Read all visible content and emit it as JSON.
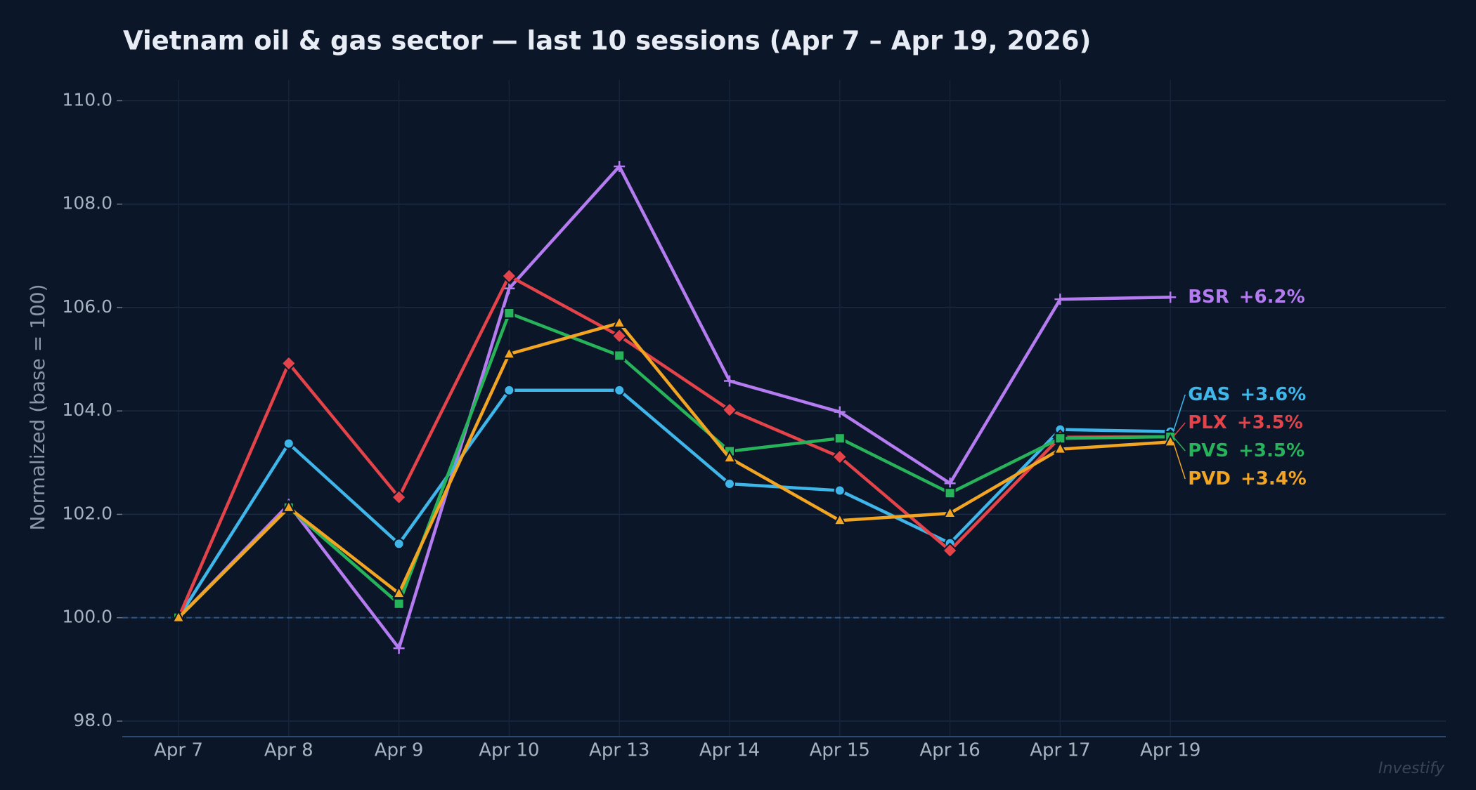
{
  "chart_data": {
    "type": "line",
    "title": "Vietnam oil & gas sector — last 10 sessions (Apr 7 – Apr 19, 2026)",
    "y_label": "Normalized (base = 100)",
    "watermark": "Investify",
    "categories": [
      "Apr 7",
      "Apr 8",
      "Apr 9",
      "Apr 10",
      "Apr 13",
      "Apr 14",
      "Apr 15",
      "Apr 16",
      "Apr 17",
      "Apr 19"
    ],
    "ylim": [
      97.7,
      110.4
    ],
    "yticks": [
      {
        "value": 98,
        "label": "98.0"
      },
      {
        "value": 100,
        "label": "100.0"
      },
      {
        "value": 102,
        "label": "102.0"
      },
      {
        "value": 104,
        "label": "104.0"
      },
      {
        "value": 106,
        "label": "106.0"
      },
      {
        "value": 108,
        "label": "108.0"
      },
      {
        "value": 110,
        "label": "110.0"
      }
    ],
    "baseline": 100,
    "grid": true,
    "series": [
      {
        "name": "BSR",
        "color": "#b57bf0",
        "marker": "plus",
        "end_label": "+6.2%",
        "values": [
          100,
          102.19,
          99.41,
          106.37,
          108.73,
          104.58,
          103.98,
          102.6,
          106.16,
          106.2
        ]
      },
      {
        "name": "GAS",
        "color": "#3fb6ea",
        "marker": "circle",
        "end_label": "+3.6%",
        "values": [
          100,
          103.37,
          101.43,
          104.4,
          104.4,
          102.59,
          102.46,
          101.44,
          103.64,
          103.6
        ]
      },
      {
        "name": "PLX",
        "color": "#e5434a",
        "marker": "diamond",
        "end_label": "+3.5%",
        "values": [
          100,
          104.92,
          102.33,
          106.61,
          105.45,
          104.02,
          103.11,
          101.3,
          103.49,
          103.5
        ]
      },
      {
        "name": "PVS",
        "color": "#27b35a",
        "marker": "square",
        "end_label": "+3.5%",
        "values": [
          100,
          102.13,
          100.27,
          105.89,
          105.07,
          103.22,
          103.47,
          102.41,
          103.47,
          103.5
        ]
      },
      {
        "name": "PVD",
        "color": "#f2a423",
        "marker": "triangle",
        "end_label": "+3.4%",
        "values": [
          100,
          102.13,
          100.47,
          105.1,
          105.7,
          103.09,
          101.88,
          102.02,
          103.26,
          103.4
        ]
      }
    ]
  }
}
